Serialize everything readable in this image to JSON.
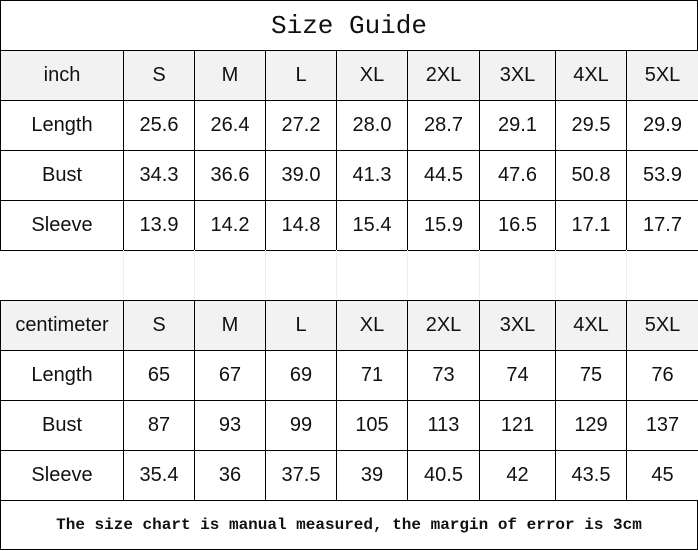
{
  "title": "Size Guide",
  "sizes": [
    "S",
    "M",
    "L",
    "XL",
    "2XL",
    "3XL",
    "4XL",
    "5XL"
  ],
  "inch": {
    "unit_label": "inch",
    "rows": [
      {
        "label": "Length",
        "values": [
          "25.6",
          "26.4",
          "27.2",
          "28.0",
          "28.7",
          "29.1",
          "29.5",
          "29.9"
        ]
      },
      {
        "label": "Bust",
        "values": [
          "34.3",
          "36.6",
          "39.0",
          "41.3",
          "44.5",
          "47.6",
          "50.8",
          "53.9"
        ]
      },
      {
        "label": "Sleeve",
        "values": [
          "13.9",
          "14.2",
          "14.8",
          "15.4",
          "15.9",
          "16.5",
          "17.1",
          "17.7"
        ]
      }
    ]
  },
  "centimeter": {
    "unit_label": "centimeter",
    "rows": [
      {
        "label": "Length",
        "values": [
          "65",
          "67",
          "69",
          "71",
          "73",
          "74",
          "75",
          "76"
        ]
      },
      {
        "label": "Bust",
        "values": [
          "87",
          "93",
          "99",
          "105",
          "113",
          "121",
          "129",
          "137"
        ]
      },
      {
        "label": "Sleeve",
        "values": [
          "35.4",
          "36",
          "37.5",
          "39",
          "40.5",
          "42",
          "43.5",
          "45"
        ]
      }
    ]
  },
  "footer_note": "The size chart is manual measured, the margin of error is 3cm"
}
